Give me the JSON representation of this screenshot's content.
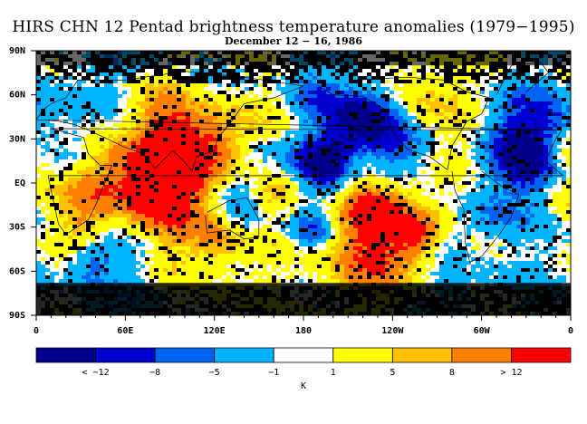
{
  "title": "HIRS CHN 12 Pentad brightness temperature anomalies (1979−1995)",
  "subtitle": "December 12 − 16, 1986",
  "chart_data": {
    "type": "heatmap",
    "title": "HIRS CHN 12 Pentad brightness temperature anomalies (1979−1995)",
    "subtitle": "December 12 − 16, 1986",
    "x_ticks": [
      "0",
      "60E",
      "120E",
      "180",
      "120W",
      "60W",
      "0"
    ],
    "y_ticks": [
      "90N",
      "60N",
      "30N",
      "EQ",
      "30S",
      "60S",
      "90S"
    ],
    "lon_range": [
      0,
      360
    ],
    "lat_range": [
      -90,
      90
    ],
    "colorbar_unit": "K",
    "colorbar_labels": [
      "< −12",
      "−8",
      "−5",
      "−1",
      "1",
      "5",
      "8",
      "> 12"
    ],
    "colorbar_colors": [
      "#00008c",
      "#0000d0",
      "#0064f0",
      "#00b4ff",
      "#ffffff",
      "#ffff00",
      "#ffc000",
      "#ff8000",
      "#ff0000"
    ],
    "missing_color": "#000000"
  }
}
